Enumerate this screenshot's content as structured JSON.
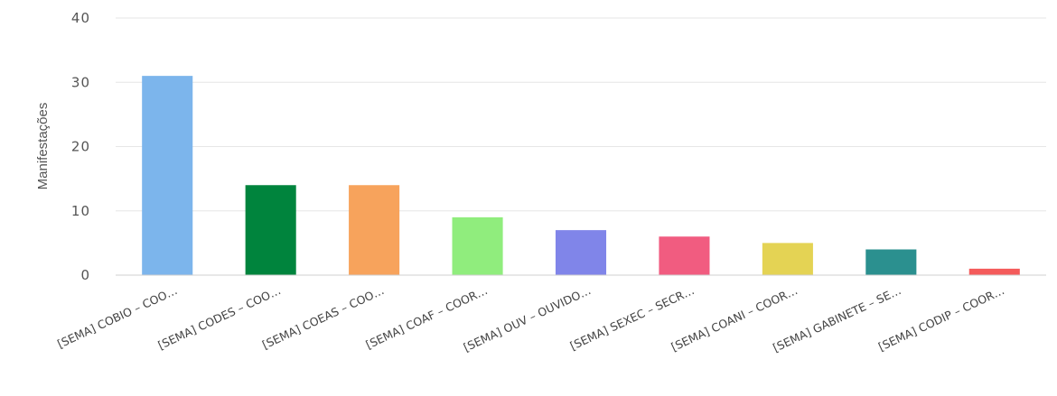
{
  "chart_data": {
    "type": "bar",
    "ylabel": "Manifestações",
    "ylim": [
      0,
      40
    ],
    "yticks": [
      0,
      10,
      20,
      30,
      40
    ],
    "grid": true,
    "legend": "none",
    "categories": [
      "[SEMA] COBIO – COO…",
      "[SEMA] CODES – COO…",
      "[SEMA] COEAS – COO…",
      "[SEMA] COAF – COOR…",
      "[SEMA] OUV – OUVIDO…",
      "[SEMA] SEXEC – SECR…",
      "[SEMA] COANI – COOR…",
      "[SEMA] GABINETE – SE…",
      "[SEMA] CODIP – COOR…"
    ],
    "values": [
      31,
      14,
      14,
      9,
      7,
      6,
      5,
      4,
      1
    ],
    "colors": [
      "#7cb5ec",
      "#00843d",
      "#f7a35c",
      "#90ed7d",
      "#8085e9",
      "#f15c80",
      "#e4d354",
      "#2b908f",
      "#f45b5b"
    ]
  }
}
